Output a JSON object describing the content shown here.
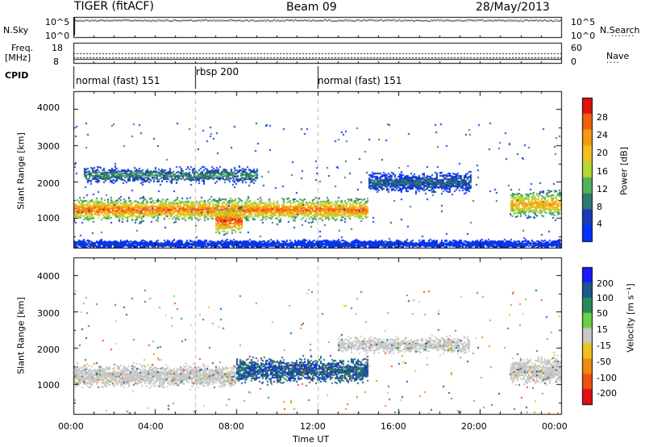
{
  "header": {
    "station": "TIGER (fitACF)",
    "beam": "Beam 09",
    "date": "28/May/2013"
  },
  "strip_panels": {
    "nsky_label": "N.Sky",
    "nsky_ticks": [
      "10^5",
      "10^0"
    ],
    "nsearch_label": "N.Search",
    "nsearch_ticks": [
      "10^5",
      "10^0"
    ],
    "freq_label": "Freq.",
    "freq_unit": "[MHz]",
    "freq_ticks": [
      "18",
      "8"
    ],
    "nave_label": "Nave",
    "nave_ticks": [
      "60",
      "0"
    ],
    "cpid_label": "CPID"
  },
  "cpid_modes": [
    {
      "label": "normal (fast) 151",
      "start_hour": 0,
      "end_hour": 6
    },
    {
      "label": "rbsp 200",
      "start_hour": 6,
      "end_hour": 12
    },
    {
      "label": "normal (fast) 151",
      "start_hour": 12,
      "end_hour": 24
    }
  ],
  "chart_data": [
    {
      "type": "heatmap",
      "parameter": "power",
      "ylabel": "Slant Range [km]",
      "ylim": [
        180,
        4500
      ],
      "xlim_hours": [
        0,
        24
      ],
      "y_ticks": [
        1000,
        2000,
        3000,
        4000
      ],
      "y_tick_labels": [
        "1000",
        "2000",
        "3000",
        "4000"
      ],
      "colorbar_label": "Power [dB]",
      "colorbar_ticks": [
        4,
        8,
        12,
        16,
        20,
        24,
        28
      ],
      "colorbar_tick_labels": [
        "4",
        "8",
        "12",
        "16",
        "20",
        "24",
        "28"
      ],
      "colorbar_colors": [
        "#0033ff",
        "#1a3cb8",
        "#2f7a6e",
        "#55b25a",
        "#b5d833",
        "#f0c020",
        "#f59a10",
        "#f06010",
        "#e01010"
      ],
      "features": [
        {
          "t_start": 0.0,
          "t_end": 14.5,
          "range_center": 1250,
          "range_width": 400,
          "peak_db": 28
        },
        {
          "t_start": 0.5,
          "t_end": 9.0,
          "range_center": 2200,
          "range_width": 300,
          "peak_db": 12
        },
        {
          "t_start": 7.0,
          "t_end": 8.3,
          "range_center": 950,
          "range_width": 500,
          "peak_db": 30
        },
        {
          "t_start": 14.5,
          "t_end": 19.5,
          "range_center": 2000,
          "range_width": 350,
          "peak_db": 10
        },
        {
          "t_start": 21.5,
          "t_end": 24.0,
          "range_center": 1400,
          "range_width": 500,
          "peak_db": 24
        },
        {
          "t_start": 0.0,
          "t_end": 24.0,
          "range_center": 300,
          "range_width": 150,
          "peak_db": 6
        }
      ]
    },
    {
      "type": "heatmap",
      "parameter": "velocity",
      "ylabel": "Slant Range [km]",
      "ylim": [
        180,
        4500
      ],
      "xlim_hours": [
        0,
        24
      ],
      "y_ticks": [
        1000,
        2000,
        3000,
        4000
      ],
      "y_tick_labels": [
        "1000",
        "2000",
        "3000",
        "4000"
      ],
      "x_ticks_hours": [
        0,
        4,
        8,
        12,
        16,
        20,
        24
      ],
      "x_tick_labels": [
        "00:00",
        "04:00",
        "08:00",
        "12:00",
        "16:00",
        "20:00",
        "00:00"
      ],
      "xlabel": "Time UT",
      "colorbar_label": "Velocity",
      "colorbar_unit": "[m s⁻¹]",
      "colorbar_ticks": [
        200,
        100,
        50,
        15,
        -15,
        -50,
        -100,
        -200
      ],
      "colorbar_tick_labels": [
        "200",
        "100",
        "50",
        "15",
        "-15",
        "-50",
        "-100",
        "-200"
      ],
      "colorbar_colors": [
        "#1a1aff",
        "#1a5a8a",
        "#2a8a5a",
        "#6ad04a",
        "#c8c8c8",
        "#f0c020",
        "#f08a10",
        "#f05010",
        "#e01010"
      ],
      "features": [
        {
          "t_start": 0.0,
          "t_end": 8.0,
          "range_center": 1250,
          "range_width": 400,
          "velocity": 0
        },
        {
          "t_start": 8.0,
          "t_end": 14.5,
          "range_center": 1400,
          "range_width": 450,
          "velocity": 150
        },
        {
          "t_start": 13.0,
          "t_end": 19.5,
          "range_center": 2100,
          "range_width": 300,
          "velocity": 0
        },
        {
          "t_start": 21.5,
          "t_end": 24.0,
          "range_center": 1400,
          "range_width": 500,
          "velocity": 0
        }
      ]
    }
  ]
}
